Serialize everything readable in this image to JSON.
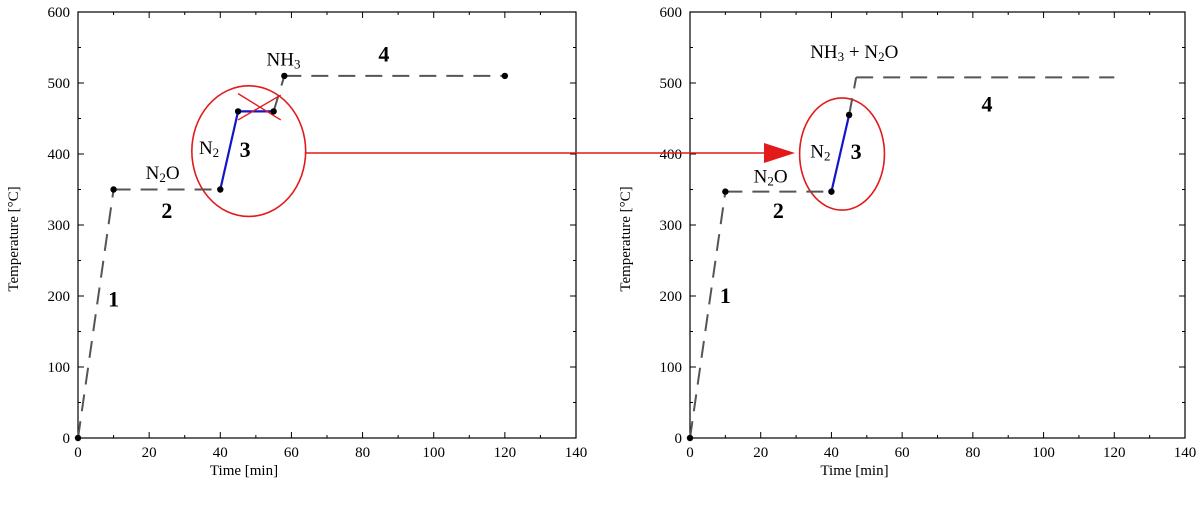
{
  "colors": {
    "dashed": "#555555",
    "solid": "#1414cc",
    "highlight": "#e31a1c",
    "point": "#000000"
  },
  "chart_data": [
    {
      "type": "line",
      "title": "",
      "xlabel": "Time [min]",
      "ylabel": "Temperature [°C]",
      "xlim": [
        0,
        140
      ],
      "ylim": [
        0,
        600
      ],
      "xticks": [
        0,
        20,
        40,
        60,
        80,
        100,
        120,
        140
      ],
      "yticks": [
        0,
        100,
        200,
        300,
        400,
        500,
        600
      ],
      "grid": false,
      "segments": [
        {
          "style": "dashed",
          "x": [
            0,
            10
          ],
          "y": [
            0,
            350
          ]
        },
        {
          "style": "dashed",
          "x": [
            10,
            40
          ],
          "y": [
            350,
            350
          ]
        },
        {
          "style": "solid",
          "x": [
            40,
            45,
            55
          ],
          "y": [
            350,
            460,
            460
          ]
        },
        {
          "style": "dashed",
          "x": [
            55,
            58
          ],
          "y": [
            460,
            510
          ]
        },
        {
          "style": "dashed",
          "x": [
            58,
            120
          ],
          "y": [
            510,
            510
          ]
        }
      ],
      "points": [
        {
          "x": 0,
          "y": 0
        },
        {
          "x": 10,
          "y": 350
        },
        {
          "x": 40,
          "y": 350
        },
        {
          "x": 45,
          "y": 460
        },
        {
          "x": 55,
          "y": 460
        },
        {
          "x": 58,
          "y": 510
        },
        {
          "x": 120,
          "y": 510
        }
      ],
      "annotations": [
        {
          "base": "N",
          "sub": "2",
          "tail": "O",
          "x": 19,
          "y": 365
        },
        {
          "base": "N",
          "sub": "2",
          "tail": "",
          "x": 34,
          "y": 400
        },
        {
          "base": "NH",
          "sub": "3",
          "tail": "",
          "x": 53,
          "y": 525
        }
      ],
      "phases": [
        {
          "label": "1",
          "x": 10,
          "y": 185
        },
        {
          "label": "2",
          "x": 25,
          "y": 310
        },
        {
          "label": "3",
          "x": 47,
          "y": 396
        },
        {
          "label": "4",
          "x": 86,
          "y": 530
        }
      ],
      "circle": {
        "cx": 48,
        "cy": 404,
        "rx": 16,
        "ry": 92
      },
      "cross": {
        "x1": 45,
        "y1": 485,
        "x2": 57,
        "y2": 448,
        "x3": 45,
        "y3": 448,
        "x4": 57,
        "y4": 483
      }
    },
    {
      "type": "line",
      "title": "",
      "xlabel": "Time [min]",
      "ylabel": "Temperature [°C]",
      "xlim": [
        0,
        140
      ],
      "ylim": [
        0,
        600
      ],
      "xticks": [
        0,
        20,
        40,
        60,
        80,
        100,
        120,
        140
      ],
      "yticks": [
        0,
        100,
        200,
        300,
        400,
        500,
        600
      ],
      "grid": false,
      "segments": [
        {
          "style": "dashed",
          "x": [
            0,
            10
          ],
          "y": [
            0,
            347
          ]
        },
        {
          "style": "dashed",
          "x": [
            10,
            40
          ],
          "y": [
            347,
            347
          ]
        },
        {
          "style": "solid",
          "x": [
            40,
            45
          ],
          "y": [
            347,
            455
          ]
        },
        {
          "style": "dashed",
          "x": [
            45,
            47
          ],
          "y": [
            455,
            508
          ]
        },
        {
          "style": "dashed",
          "x": [
            47,
            120
          ],
          "y": [
            508,
            508
          ]
        }
      ],
      "points": [
        {
          "x": 0,
          "y": 0
        },
        {
          "x": 10,
          "y": 347
        },
        {
          "x": 40,
          "y": 347
        },
        {
          "x": 45,
          "y": 455
        }
      ],
      "annotations": [
        {
          "base": "N",
          "sub": "2",
          "tail": "O",
          "x": 18,
          "y": 360
        },
        {
          "base": "N",
          "sub": "2",
          "tail": "",
          "x": 34,
          "y": 395
        },
        {
          "base": "NH",
          "sub": "3",
          "tail": " + N",
          "sub2": "2",
          "tail2": "O",
          "x": 34,
          "y": 535
        }
      ],
      "phases": [
        {
          "label": "1",
          "x": 10,
          "y": 190
        },
        {
          "label": "2",
          "x": 25,
          "y": 310
        },
        {
          "label": "3",
          "x": 47,
          "y": 393
        },
        {
          "label": "4",
          "x": 84,
          "y": 460
        }
      ],
      "circle": {
        "cx": 43,
        "cy": 400,
        "rx": 12,
        "ry": 79
      },
      "cross": null
    }
  ]
}
